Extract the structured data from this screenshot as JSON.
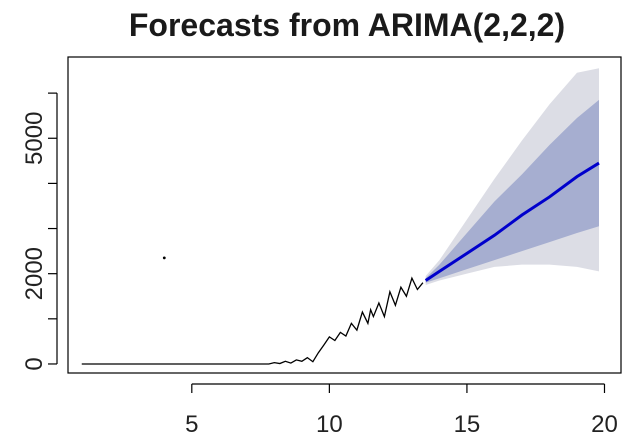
{
  "chart_data": {
    "type": "line",
    "title": "Forecasts from ARIMA(2,2,2)",
    "xlabel": "",
    "ylabel": "",
    "xlim": [
      0.5,
      20.6
    ],
    "ylim": [
      -200,
      6800
    ],
    "x_ticks": [
      5,
      10,
      15,
      20
    ],
    "x_tick_labels": [
      "5",
      "10",
      "15",
      "20"
    ],
    "y_ticks": [
      0,
      1000,
      2000,
      3000,
      4000,
      5000,
      6000
    ],
    "y_tick_labels": [
      "0",
      "",
      "2000",
      "",
      "",
      "5000",
      ""
    ],
    "grid": false,
    "legend": "none",
    "colors": {
      "observed": "#000000",
      "forecast": "#0000cc",
      "pi80": "#a6aed0",
      "pi95": "#dcdde5"
    },
    "stray_point": {
      "x": 4.0,
      "y": 2350
    },
    "series": [
      {
        "role": "observed",
        "x": [
          1.0,
          2.0,
          3.0,
          4.0,
          5.0,
          6.0,
          7.0,
          7.8,
          8.0,
          8.2,
          8.4,
          8.6,
          8.8,
          9.0,
          9.2,
          9.4,
          9.6,
          9.8,
          10.0,
          10.2,
          10.4,
          10.6,
          10.8,
          11.0,
          11.2,
          11.4,
          11.5,
          11.6,
          11.8,
          12.0,
          12.2,
          12.4,
          12.6,
          12.8,
          13.0,
          13.2,
          13.4
        ],
        "y": [
          0,
          0,
          0,
          0,
          0,
          0,
          0,
          0,
          30,
          10,
          60,
          20,
          90,
          60,
          140,
          50,
          250,
          420,
          600,
          520,
          700,
          620,
          900,
          750,
          1150,
          900,
          1200,
          1050,
          1350,
          1050,
          1600,
          1300,
          1700,
          1500,
          1900,
          1650,
          1800
        ]
      },
      {
        "role": "forecast",
        "x": [
          13.5,
          14.0,
          15.0,
          16.0,
          17.0,
          18.0,
          19.0,
          19.8
        ],
        "y": [
          1850,
          2050,
          2450,
          2850,
          3300,
          3700,
          4150,
          4450
        ]
      },
      {
        "role": "pi80",
        "x": [
          13.5,
          14.0,
          15.0,
          16.0,
          17.0,
          18.0,
          19.0,
          19.8
        ],
        "lower": [
          1800,
          1900,
          2100,
          2300,
          2500,
          2700,
          2900,
          3050
        ],
        "upper": [
          1900,
          2200,
          2900,
          3600,
          4200,
          4850,
          5450,
          5850
        ]
      },
      {
        "role": "pi95",
        "x": [
          13.5,
          14.0,
          15.0,
          16.0,
          17.0,
          18.0,
          19.0,
          19.8
        ],
        "lower": [
          1750,
          1850,
          2000,
          2150,
          2200,
          2200,
          2150,
          2050
        ],
        "upper": [
          1950,
          2300,
          3200,
          4100,
          4950,
          5750,
          6450,
          6550
        ]
      }
    ]
  }
}
